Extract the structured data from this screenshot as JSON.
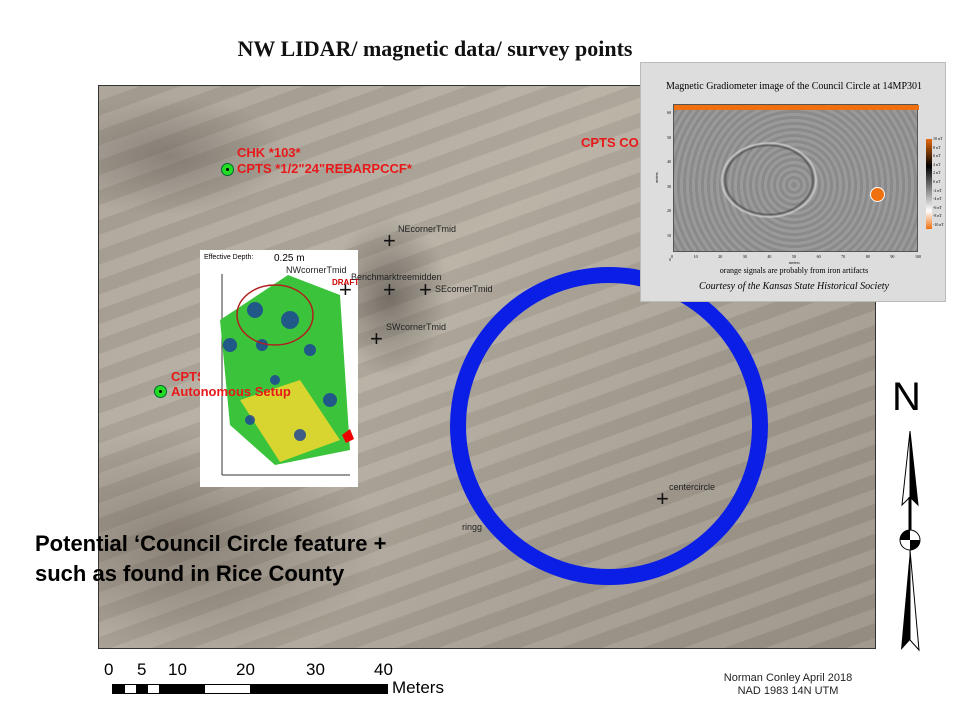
{
  "title": "NW  LIDAR/ magnetic data/ survey points",
  "map_labels": {
    "chk": "CHK *103*",
    "cpts_rebar": "CPTS *1/2\"24\"REBARPCCF*",
    "cpts_co": "CPTS CO",
    "cpts": "CPTS",
    "autonomous": "Autonomous Setup",
    "ne": "NEcornerTmid",
    "nw": "NWcornerTmid",
    "bench": "Benchmarktreemidden",
    "se": "SEcornerTmid",
    "sw": "SWcornerTmid",
    "center": "centercircle",
    "ring": "ringg",
    "draft": "DRAFT"
  },
  "inset_gpr": {
    "depth_label": "Effective Depth:",
    "depth_value": "0.25 m"
  },
  "inset_mag": {
    "title": "Magnetic Gradiometer image of the Council Circle at 14MP301",
    "y_label": "meters",
    "x_label": "meters",
    "x_ticks": [
      "0",
      "10",
      "20",
      "30",
      "40",
      "50",
      "60",
      "70",
      "80",
      "90",
      "100"
    ],
    "y_ticks": [
      "60",
      "50",
      "40",
      "30",
      "20",
      "10",
      "0"
    ],
    "colorbar": [
      "10 nT",
      "8 nT",
      "6 nT",
      "4 nT",
      "2 nT",
      "0 nT",
      "-2 nT",
      "-4 nT",
      "-6 nT",
      "-8 nT",
      "-10 nT"
    ],
    "caption": "orange signals are probably from iron artifacts",
    "credit": "Courtesy of the Kansas State Historical Society"
  },
  "annotation": [
    "Potential ‘Council Circle feature +",
    "such as  found in Rice County"
  ],
  "scale": {
    "ticks": [
      "0",
      "5",
      "10",
      "20",
      "30",
      "40"
    ],
    "unit": "Meters"
  },
  "north": "N",
  "credits": [
    "Norman Conley April 2018",
    "NAD 1983 14N UTM"
  ],
  "colors": {
    "circle": "#0a1ee6",
    "labels": "#e8191a",
    "points": "#22dd22",
    "iron": "#f07010"
  }
}
